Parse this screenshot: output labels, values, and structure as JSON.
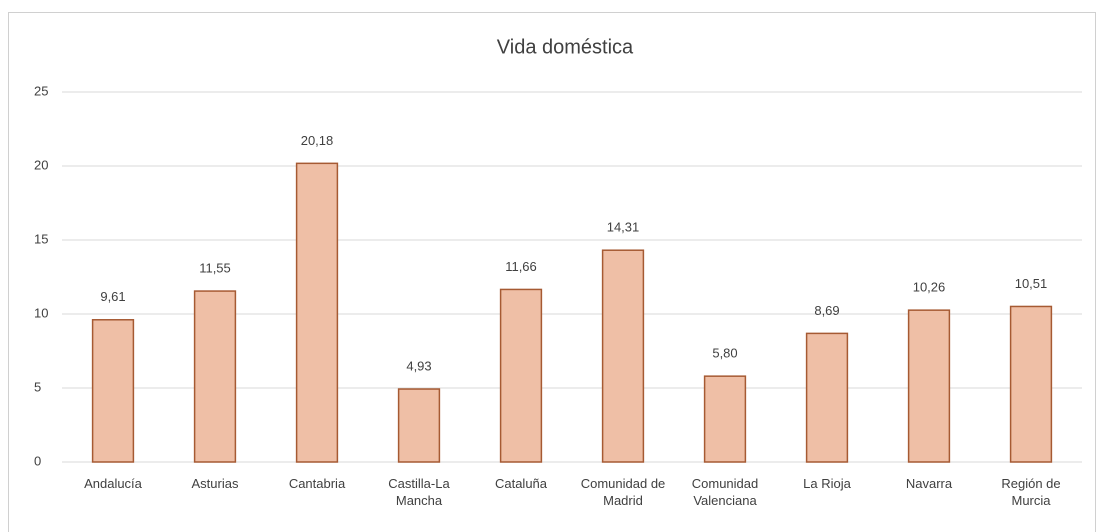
{
  "chart_data": {
    "type": "bar",
    "title": "Vida doméstica",
    "categories": [
      "Andalucía",
      "Asturias",
      "Cantabria",
      "Castilla-La Mancha",
      "Cataluña",
      "Comunidad de Madrid",
      "Comunidad Valenciana",
      "La Rioja",
      "Navarra",
      "Región de Murcia"
    ],
    "values": [
      9.61,
      11.55,
      20.18,
      4.93,
      11.66,
      14.31,
      5.8,
      8.69,
      10.26,
      10.51
    ],
    "value_labels": [
      "9,61",
      "11,55",
      "20,18",
      "4,93",
      "11,66",
      "14,31",
      "5,80",
      "8,69",
      "10,26",
      "10,51"
    ],
    "color": "#efbfa6",
    "edge_color": "#a65a33",
    "ylim": [
      0,
      25
    ],
    "yticks": [
      0,
      5,
      10,
      15,
      20,
      25
    ],
    "grid": true
  }
}
